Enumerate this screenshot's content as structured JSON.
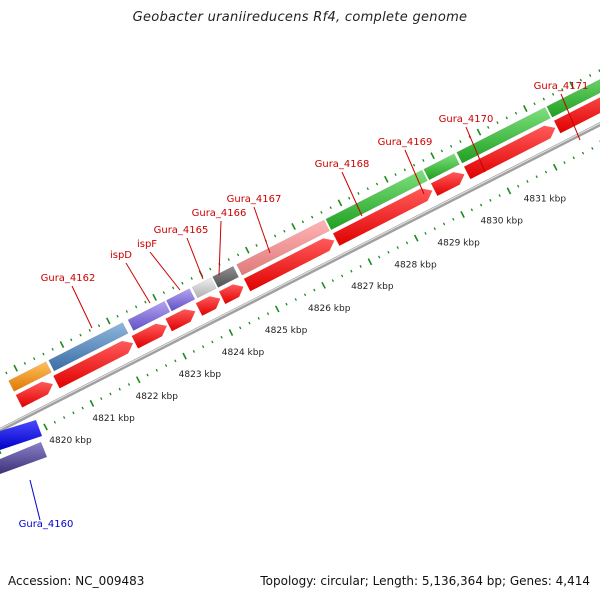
{
  "title": "Geobacter uraniireducens Rf4, complete genome",
  "footer": {
    "accession": "Accession: NC_009483",
    "summary": "Topology: circular; Length: 5,136,364 bp; Genes: 4,414"
  },
  "colors": {
    "label_red": "#cc0000",
    "label_blue": "#0000cc",
    "tick_green": "#1d8a1d",
    "backbone": "#8a8a8a",
    "cds_red": "#ff1a1a"
  },
  "gene_labels": [
    {
      "text": "Gura_4160",
      "color": "#0000cc"
    },
    {
      "text": "Gura_4162",
      "color": "#cc0000"
    },
    {
      "text": "ispD",
      "color": "#cc0000"
    },
    {
      "text": "ispF",
      "color": "#cc0000"
    },
    {
      "text": "Gura_4165",
      "color": "#cc0000"
    },
    {
      "text": "Gura_4166",
      "color": "#cc0000"
    },
    {
      "text": "Gura_4167",
      "color": "#cc0000"
    },
    {
      "text": "Gura_4168",
      "color": "#cc0000"
    },
    {
      "text": "Gura_4169",
      "color": "#cc0000"
    },
    {
      "text": "Gura_4170",
      "color": "#cc0000"
    },
    {
      "text": "Gura_4171",
      "color": "#cc0000"
    }
  ],
  "scale_labels": [
    "4820 kbp",
    "4821 kbp",
    "4822 kbp",
    "4823 kbp",
    "4824 kbp",
    "4825 kbp",
    "4826 kbp",
    "4827 kbp",
    "4828 kbp",
    "4829 kbp",
    "4830 kbp",
    "4831 kbp"
  ]
}
